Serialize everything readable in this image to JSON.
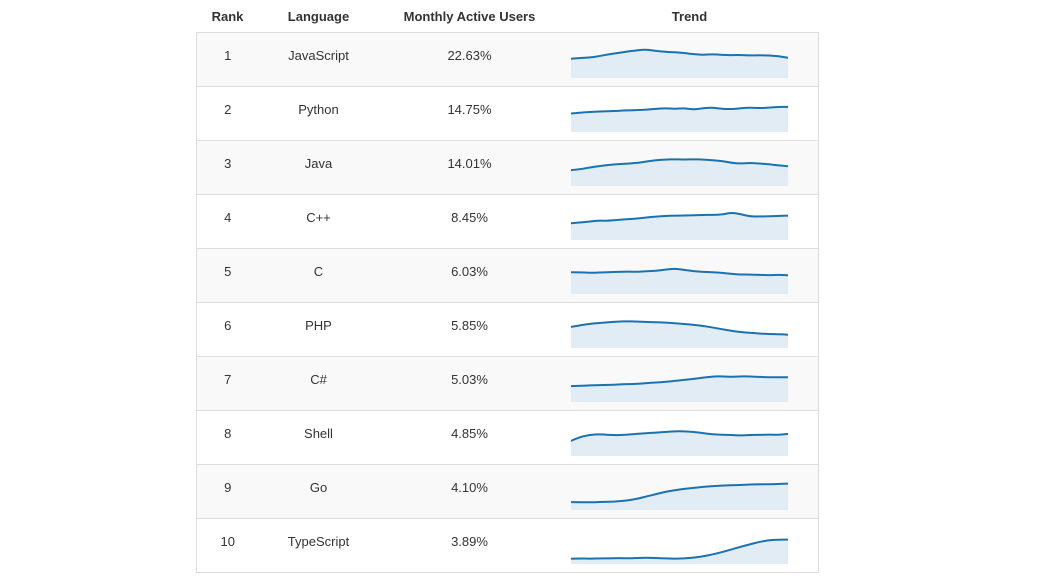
{
  "table": {
    "columns": [
      {
        "label": "Rank"
      },
      {
        "label": "Language"
      },
      {
        "label": "Monthly Active Users"
      },
      {
        "label": "Trend"
      }
    ],
    "rows": [
      {
        "rank": "1",
        "language": "JavaScript",
        "mau": "22.63%"
      },
      {
        "rank": "2",
        "language": "Python",
        "mau": "14.75%"
      },
      {
        "rank": "3",
        "language": "Java",
        "mau": "14.01%"
      },
      {
        "rank": "4",
        "language": "C++",
        "mau": "8.45%"
      },
      {
        "rank": "5",
        "language": "C",
        "mau": "6.03%"
      },
      {
        "rank": "6",
        "language": "PHP",
        "mau": "5.85%"
      },
      {
        "rank": "7",
        "language": "C#",
        "mau": "5.03%"
      },
      {
        "rank": "8",
        "language": "Shell",
        "mau": "4.85%"
      },
      {
        "rank": "9",
        "language": "Go",
        "mau": "4.10%"
      },
      {
        "rank": "10",
        "language": "TypeScript",
        "mau": "3.89%"
      }
    ]
  },
  "colors": {
    "spark_line": "#1b72b1",
    "spark_fill": "#e2ecf5",
    "row_stripe": "#f9f9f9",
    "border": "#dddddd",
    "text": "#333333"
  },
  "chart_data": {
    "type": "area",
    "note": "Inline sparklines per language; y values normalized 0-1 within each sparkline box (1 = highest point of that row's trend line), baseline filled to 0.",
    "legend_position": "none",
    "grid": false,
    "series": [
      {
        "name": "JavaScript",
        "mau": 22.63,
        "values": [
          0.52,
          0.55,
          0.56,
          0.6,
          0.66,
          0.7,
          0.74,
          0.78,
          0.8,
          0.76,
          0.73,
          0.72,
          0.7,
          0.66,
          0.64,
          0.66,
          0.64,
          0.63,
          0.64,
          0.62,
          0.63,
          0.62,
          0.6,
          0.55
        ]
      },
      {
        "name": "Python",
        "mau": 14.75,
        "values": [
          0.5,
          0.52,
          0.55,
          0.56,
          0.57,
          0.58,
          0.6,
          0.6,
          0.62,
          0.64,
          0.66,
          0.64,
          0.66,
          0.62,
          0.66,
          0.68,
          0.64,
          0.63,
          0.66,
          0.68,
          0.66,
          0.68,
          0.7,
          0.7
        ]
      },
      {
        "name": "Java",
        "mau": 14.01,
        "values": [
          0.42,
          0.45,
          0.5,
          0.54,
          0.58,
          0.6,
          0.62,
          0.64,
          0.68,
          0.72,
          0.74,
          0.75,
          0.74,
          0.75,
          0.74,
          0.72,
          0.7,
          0.64,
          0.62,
          0.64,
          0.62,
          0.6,
          0.56,
          0.54
        ]
      },
      {
        "name": "C++",
        "mau": 8.45,
        "values": [
          0.45,
          0.47,
          0.5,
          0.53,
          0.52,
          0.55,
          0.57,
          0.59,
          0.62,
          0.65,
          0.67,
          0.68,
          0.68,
          0.69,
          0.7,
          0.7,
          0.71,
          0.77,
          0.72,
          0.65,
          0.65,
          0.66,
          0.67,
          0.68
        ]
      },
      {
        "name": "C",
        "mau": 6.03,
        "values": [
          0.6,
          0.6,
          0.58,
          0.59,
          0.6,
          0.61,
          0.62,
          0.61,
          0.63,
          0.64,
          0.68,
          0.71,
          0.67,
          0.63,
          0.61,
          0.6,
          0.58,
          0.55,
          0.53,
          0.53,
          0.52,
          0.51,
          0.52,
          0.51
        ]
      },
      {
        "name": "PHP",
        "mau": 5.85,
        "values": [
          0.58,
          0.63,
          0.67,
          0.7,
          0.72,
          0.74,
          0.75,
          0.74,
          0.73,
          0.72,
          0.71,
          0.69,
          0.67,
          0.64,
          0.61,
          0.56,
          0.51,
          0.46,
          0.42,
          0.4,
          0.38,
          0.36,
          0.36,
          0.34
        ]
      },
      {
        "name": "C#",
        "mau": 5.03,
        "values": [
          0.42,
          0.43,
          0.44,
          0.45,
          0.46,
          0.47,
          0.48,
          0.49,
          0.51,
          0.53,
          0.55,
          0.58,
          0.61,
          0.64,
          0.68,
          0.71,
          0.72,
          0.7,
          0.72,
          0.71,
          0.7,
          0.69,
          0.69,
          0.69
        ]
      },
      {
        "name": "Shell",
        "mau": 4.85,
        "values": [
          0.4,
          0.52,
          0.58,
          0.6,
          0.58,
          0.57,
          0.59,
          0.61,
          0.63,
          0.65,
          0.67,
          0.69,
          0.69,
          0.67,
          0.63,
          0.6,
          0.58,
          0.58,
          0.56,
          0.58,
          0.58,
          0.59,
          0.58,
          0.61
        ]
      },
      {
        "name": "Go",
        "mau": 4.1,
        "values": [
          0.18,
          0.18,
          0.17,
          0.18,
          0.19,
          0.2,
          0.23,
          0.28,
          0.35,
          0.42,
          0.49,
          0.54,
          0.58,
          0.61,
          0.64,
          0.66,
          0.68,
          0.69,
          0.7,
          0.71,
          0.72,
          0.72,
          0.73,
          0.74
        ]
      },
      {
        "name": "TypeScript",
        "mau": 3.89,
        "values": [
          0.1,
          0.11,
          0.1,
          0.11,
          0.11,
          0.12,
          0.11,
          0.12,
          0.13,
          0.12,
          0.11,
          0.1,
          0.11,
          0.13,
          0.17,
          0.23,
          0.3,
          0.38,
          0.46,
          0.54,
          0.61,
          0.66,
          0.68,
          0.68
        ]
      }
    ]
  }
}
